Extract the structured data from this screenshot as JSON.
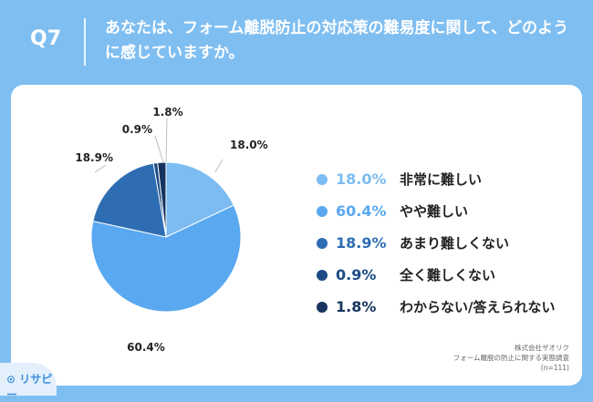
{
  "header": {
    "question_label": "Q7",
    "question_text": "あなたは、フォーム離脱防止の対応策の難易度に関して、どのように感じていますか。"
  },
  "chart_data": {
    "type": "pie",
    "slices": [
      {
        "label": "非常に難しい",
        "value": 18.0,
        "display": "18.0%",
        "color": "#7cbcf2"
      },
      {
        "label": "やや難しい",
        "value": 60.4,
        "display": "60.4%",
        "color": "#5aa8f0"
      },
      {
        "label": "あまり難しくない",
        "value": 18.9,
        "display": "18.9%",
        "color": "#2f6db3"
      },
      {
        "label": "全く難しくない",
        "value": 0.9,
        "display": "0.9%",
        "color": "#1c4a85"
      },
      {
        "label": "わからない/答えられない",
        "value": 1.8,
        "display": "1.8%",
        "color": "#16345f"
      }
    ],
    "start": "12 o'clock",
    "direction": "clockwise"
  },
  "source": {
    "line1": "株式会社ザオリク",
    "line2": "フォーム離脱の防止に関する実態調査",
    "line3": "(n=111)"
  },
  "logo": {
    "text": "リサピー",
    "icon": "speech-bubble-q-icon"
  }
}
